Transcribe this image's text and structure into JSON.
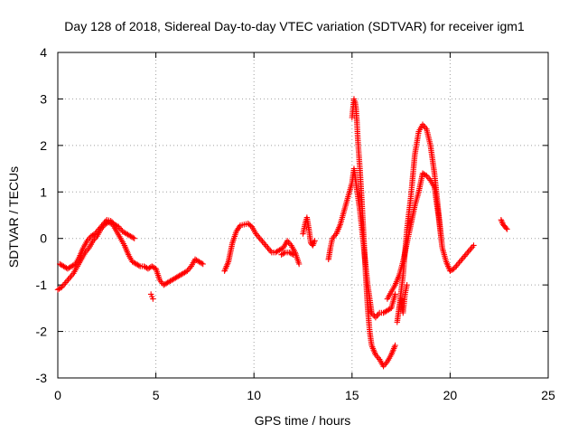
{
  "chart_data": {
    "type": "scatter",
    "title": "Day 128 of 2018, Sidereal Day-to-day VTEC variation (SDTVAR) for receiver igm1",
    "xlabel": "GPS time / hours",
    "ylabel": "SDTVAR / TECUs",
    "xlim": [
      0,
      25
    ],
    "ylim": [
      -3,
      4
    ],
    "xticks": [
      0,
      5,
      10,
      15,
      20,
      25
    ],
    "yticks": [
      -3,
      -2,
      -1,
      0,
      1,
      2,
      3,
      4
    ],
    "grid": true,
    "marker": "+",
    "series": [
      {
        "name": "SDTVAR",
        "color": "#ff0000",
        "segments": [
          {
            "x": [
              0.0,
              0.2,
              0.4,
              0.6,
              0.8,
              1.0,
              1.2,
              1.4,
              1.6,
              1.8,
              2.0,
              2.2,
              2.4,
              2.6,
              2.8,
              3.0,
              3.2,
              3.4,
              3.6,
              3.8,
              4.0,
              4.2,
              4.4,
              4.6,
              4.8,
              5.0,
              5.2,
              5.4,
              5.6,
              5.8,
              6.0,
              6.2,
              6.4,
              6.6,
              6.8,
              7.0,
              7.2,
              7.4
            ],
            "y": [
              -1.1,
              -1.05,
              -0.95,
              -0.85,
              -0.75,
              -0.6,
              -0.45,
              -0.3,
              -0.2,
              -0.05,
              0.05,
              0.2,
              0.3,
              0.35,
              0.3,
              0.15,
              0.0,
              -0.15,
              -0.35,
              -0.5,
              -0.55,
              -0.6,
              -0.6,
              -0.65,
              -0.6,
              -0.65,
              -0.9,
              -1.0,
              -0.95,
              -0.9,
              -0.85,
              -0.8,
              -0.75,
              -0.7,
              -0.6,
              -0.45,
              -0.5,
              -0.55
            ]
          },
          {
            "x": [
              0.1,
              0.3,
              0.5,
              0.7,
              0.9,
              1.1,
              1.3,
              1.5,
              1.7,
              1.9,
              2.1,
              2.3,
              2.5,
              2.7,
              2.9,
              3.1,
              3.3,
              3.5,
              3.7,
              3.9
            ],
            "y": [
              -0.55,
              -0.6,
              -0.65,
              -0.6,
              -0.55,
              -0.4,
              -0.2,
              -0.05,
              0.05,
              0.1,
              0.2,
              0.3,
              0.4,
              0.38,
              0.3,
              0.25,
              0.15,
              0.1,
              0.05,
              0.0
            ]
          },
          {
            "x": [
              4.75,
              4.8,
              4.85
            ],
            "y": [
              -1.2,
              -1.25,
              -1.3
            ]
          },
          {
            "x": [
              8.5,
              8.7,
              8.9,
              9.1,
              9.3,
              9.5,
              9.7,
              9.9,
              10.1,
              10.3,
              10.5,
              10.7,
              10.9,
              11.1,
              11.3,
              11.5,
              11.7,
              11.9,
              12.1,
              12.3
            ],
            "y": [
              -0.7,
              -0.5,
              -0.1,
              0.15,
              0.28,
              0.3,
              0.32,
              0.25,
              0.1,
              0.0,
              -0.1,
              -0.2,
              -0.3,
              -0.3,
              -0.25,
              -0.2,
              -0.05,
              -0.15,
              -0.3,
              -0.55
            ]
          },
          {
            "x": [
              11.4,
              11.6,
              11.8,
              12.0
            ],
            "y": [
              -0.35,
              -0.3,
              -0.3,
              -0.35
            ]
          },
          {
            "x": [
              12.5,
              12.6,
              12.7,
              12.8,
              12.9,
              13.0,
              13.1
            ],
            "y": [
              0.1,
              0.3,
              0.45,
              0.2,
              -0.1,
              -0.15,
              -0.05
            ]
          },
          {
            "x": [
              13.8,
              13.9,
              14.0,
              14.2,
              14.4,
              14.6,
              14.8,
              15.0,
              15.1,
              15.2,
              15.3,
              15.4,
              15.5,
              15.6,
              15.7,
              15.8,
              15.9,
              16.0,
              16.2,
              16.4,
              16.6,
              16.8,
              17.0,
              17.2
            ],
            "y": [
              -0.45,
              -0.2,
              0.0,
              0.1,
              0.3,
              0.6,
              0.9,
              1.2,
              1.5,
              1.2,
              0.9,
              0.6,
              0.2,
              -0.2,
              -0.6,
              -1.0,
              -1.3,
              -1.6,
              -1.7,
              -1.6,
              -1.6,
              -1.55,
              -1.5,
              -1.2
            ]
          },
          {
            "x": [
              15.0,
              15.05,
              15.1,
              15.15,
              15.2,
              15.25,
              15.3,
              15.4,
              15.5,
              15.6,
              15.7,
              15.8,
              15.9,
              16.0,
              16.2,
              16.4,
              16.6,
              16.8,
              17.0,
              17.2
            ],
            "y": [
              2.6,
              2.8,
              3.0,
              2.95,
              2.8,
              2.5,
              2.1,
              1.5,
              0.8,
              0.0,
              -0.8,
              -1.5,
              -2.0,
              -2.3,
              -2.5,
              -2.6,
              -2.75,
              -2.65,
              -2.5,
              -2.3
            ]
          },
          {
            "x": [
              16.8,
              17.0,
              17.2,
              17.4,
              17.6,
              17.8,
              18.0,
              18.2,
              18.4,
              18.6,
              18.8,
              19.0,
              19.2,
              19.4,
              19.6,
              19.8,
              20.0,
              20.2,
              20.4,
              20.6,
              20.8,
              21.0,
              21.2
            ],
            "y": [
              -1.3,
              -1.15,
              -1.0,
              -0.8,
              -0.5,
              -0.1,
              0.3,
              0.7,
              1.0,
              1.4,
              1.35,
              1.25,
              1.1,
              0.5,
              -0.2,
              -0.5,
              -0.7,
              -0.65,
              -0.55,
              -0.45,
              -0.35,
              -0.25,
              -0.15
            ]
          },
          {
            "x": [
              17.4,
              17.6,
              17.8,
              18.0,
              18.2,
              18.4,
              18.6,
              18.8,
              19.0,
              19.2,
              19.4,
              19.6
            ],
            "y": [
              -1.5,
              -0.8,
              0.2,
              0.9,
              1.8,
              2.3,
              2.45,
              2.35,
              2.0,
              1.4,
              0.6,
              -0.2
            ]
          },
          {
            "x": [
              17.3,
              17.4,
              17.5,
              17.6,
              17.7,
              17.8
            ],
            "y": [
              -1.8,
              -1.5,
              -1.3,
              -1.6,
              -1.2,
              -1.0
            ]
          },
          {
            "x": [
              22.6,
              22.7,
              22.8,
              22.9
            ],
            "y": [
              0.4,
              0.3,
              0.25,
              0.2
            ]
          }
        ]
      }
    ]
  }
}
